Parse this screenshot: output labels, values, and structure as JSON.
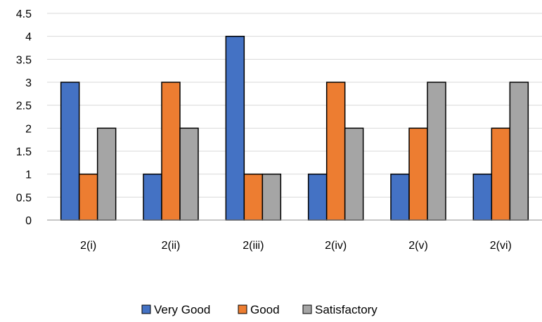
{
  "chart_data": {
    "type": "bar",
    "title": "",
    "xlabel": "",
    "ylabel": "",
    "categories": [
      "2(i)",
      "2(ii)",
      "2(iii)",
      "2(iv)",
      "2(v)",
      "2(vi)"
    ],
    "series": [
      {
        "name": "Very Good",
        "color": "#4472C4",
        "values": [
          3,
          1,
          4,
          1,
          1,
          1
        ]
      },
      {
        "name": "Good",
        "color": "#ED7D31",
        "values": [
          1,
          3,
          1,
          3,
          2,
          2
        ]
      },
      {
        "name": "Satisfactory",
        "color": "#A5A5A5",
        "values": [
          2,
          2,
          1,
          2,
          3,
          3
        ]
      }
    ],
    "ylim": [
      0,
      4.5
    ],
    "y_ticks": [
      "0",
      "0.5",
      "1",
      "1.5",
      "2",
      "2.5",
      "3",
      "3.5",
      "4",
      "4.5"
    ],
    "y_tick_values": [
      0,
      0.5,
      1,
      1.5,
      2,
      2.5,
      3,
      3.5,
      4,
      4.5
    ],
    "grid": true,
    "legend_position": "bottom"
  }
}
